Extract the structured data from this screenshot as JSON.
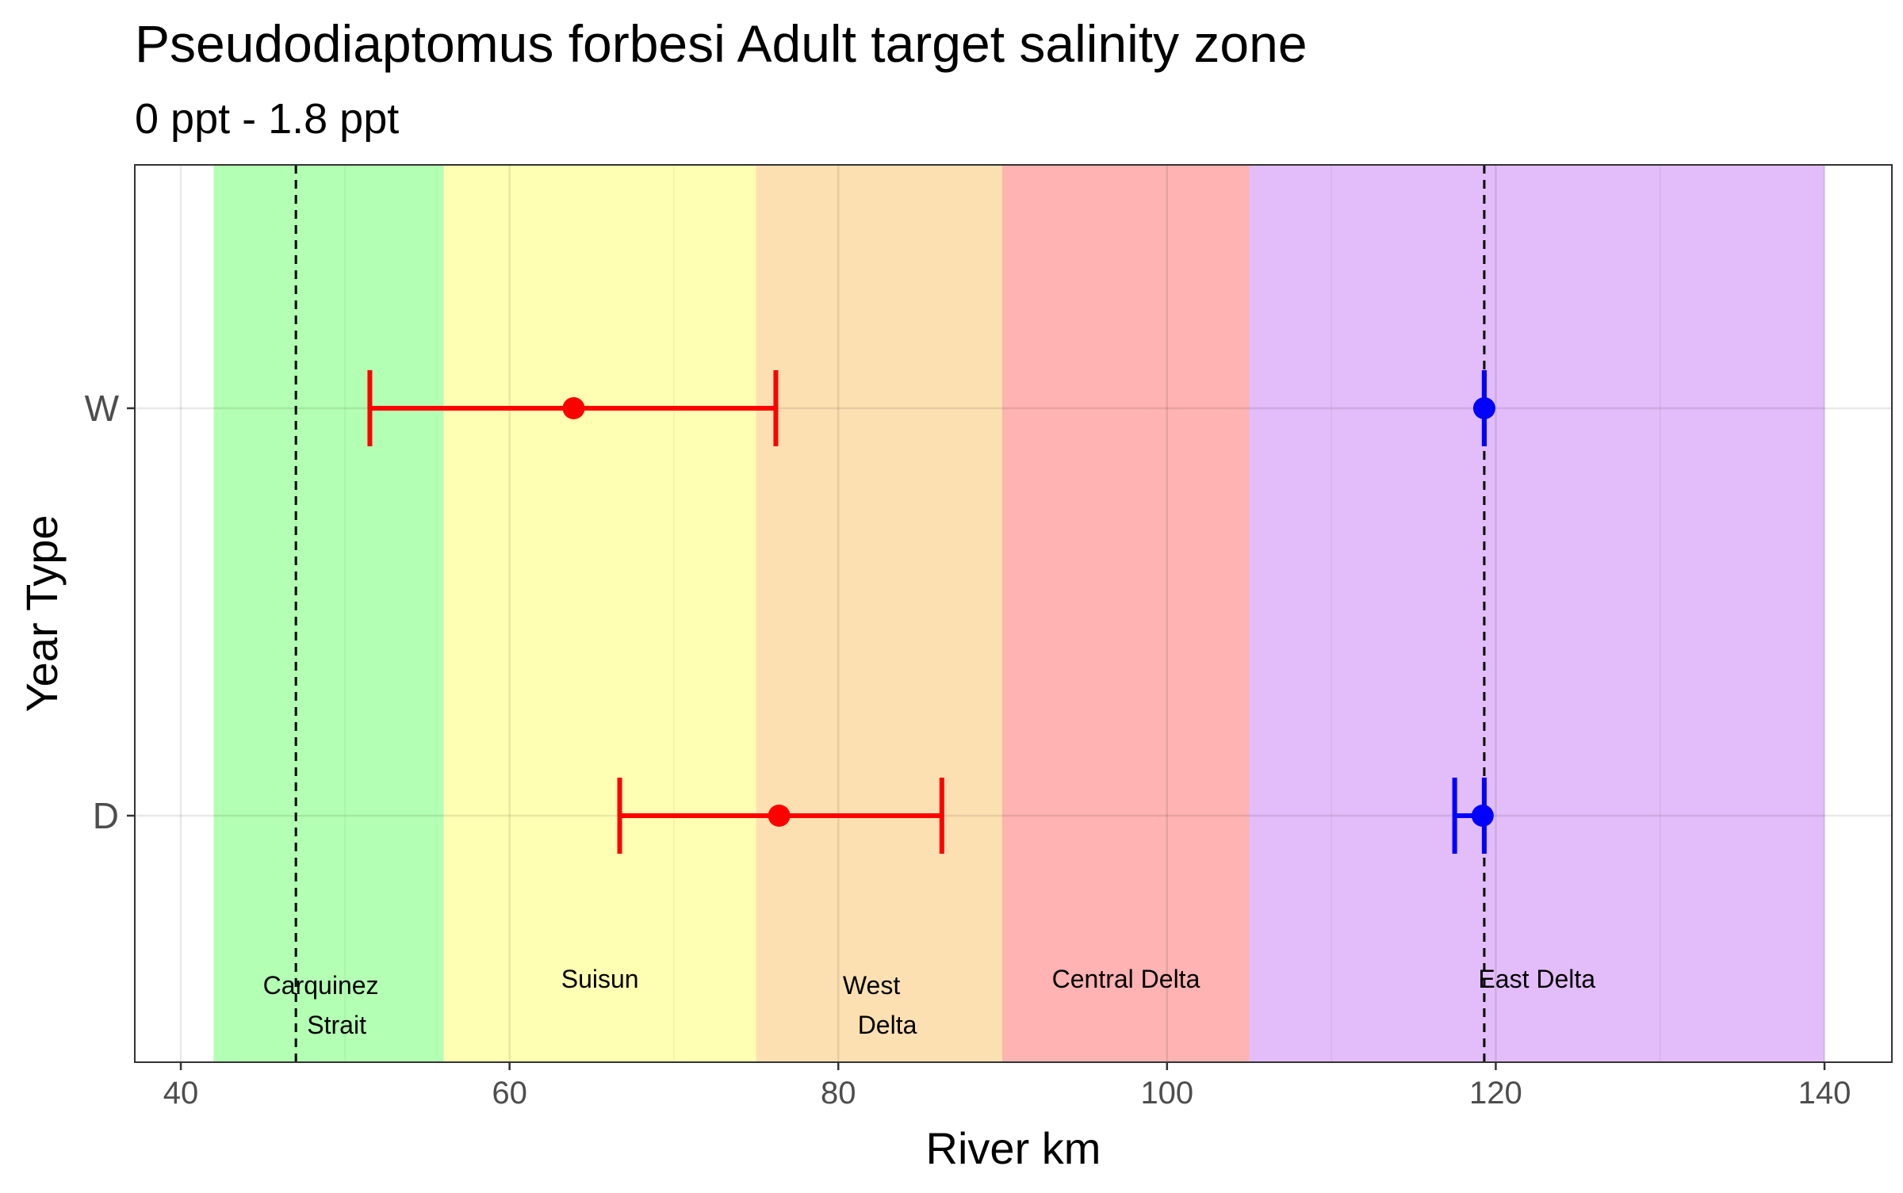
{
  "chart_data": {
    "type": "scatter",
    "title": "Pseudodiaptomus forbesi Adult  target salinity zone",
    "subtitle": "0 ppt - 1.8 ppt",
    "xlabel": "River km",
    "ylabel": "Year Type",
    "xlim": [
      37.2,
      144.1
    ],
    "x_ticks": [
      40,
      60,
      80,
      100,
      120,
      140
    ],
    "categories": [
      "D",
      "W"
    ],
    "grid": true,
    "regions": [
      {
        "label_lines": [
          "Carquinez",
          "Strait"
        ],
        "from": 42,
        "to": 56,
        "color": "#b3ffb3"
      },
      {
        "label_lines": [
          "Suisun"
        ],
        "from": 56,
        "to": 75,
        "color": "#ffffb3"
      },
      {
        "label_lines": [
          "West",
          "Delta"
        ],
        "from": 75,
        "to": 90,
        "color": "#fde0b2"
      },
      {
        "label_lines": [
          "Central Delta"
        ],
        "from": 90,
        "to": 105,
        "color": "#ffb3b3"
      },
      {
        "label_lines": [
          "East Delta"
        ],
        "from": 105,
        "to": 140,
        "color": "#e2bdf9"
      }
    ],
    "reference_lines": [
      47,
      119.3
    ],
    "series": [
      {
        "color": "#ff0000",
        "points": [
          {
            "category": "W",
            "x": 63.9,
            "xmin": 51.5,
            "xmax": 76.2
          },
          {
            "category": "D",
            "x": 76.4,
            "xmin": 66.7,
            "xmax": 86.3
          }
        ]
      },
      {
        "color": "#0000ff",
        "points": [
          {
            "category": "W",
            "x": 119.3,
            "xmin": 119.3,
            "xmax": 119.3
          },
          {
            "category": "D",
            "x": 119.2,
            "xmin": 117.5,
            "xmax": 119.3
          }
        ]
      }
    ]
  }
}
